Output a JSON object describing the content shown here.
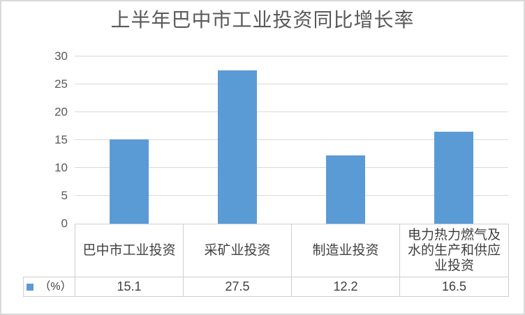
{
  "chart_data": {
    "type": "bar",
    "title": "上半年巴中市工业投资同比增长率",
    "categories": [
      "巴中市工业投资",
      "采矿业投资",
      "制造业投资",
      "电力热力燃气及水的生产和供应业投资"
    ],
    "categories_display": [
      "巴中市工业投资",
      "采矿业投资",
      "制造业投资",
      "电力热力燃气及\n水的生产和供应\n业投资"
    ],
    "series": [
      {
        "name": "（%）",
        "color": "#5B9BD5",
        "values": [
          15.1,
          27.5,
          12.2,
          16.5
        ]
      }
    ],
    "value_labels": [
      "15.1",
      "27.5",
      "12.2",
      "16.5"
    ],
    "xlabel": "",
    "ylabel": "",
    "y_axis": {
      "min": 0,
      "max": 30,
      "step": 5,
      "ticks": [
        0,
        5,
        10,
        15,
        20,
        25,
        30
      ]
    },
    "grid": true,
    "legend_position": "data-table-left",
    "data_table_shown": true,
    "colors": {
      "bar": "#5B9BD5",
      "gridline": "#D9D9D9",
      "table_border": "#CFCFCF",
      "title_text": "#595959",
      "axis_text": "#595959",
      "table_text": "#404040",
      "frame_border": "#D9D9D9",
      "background": "#FFFFFF"
    }
  }
}
